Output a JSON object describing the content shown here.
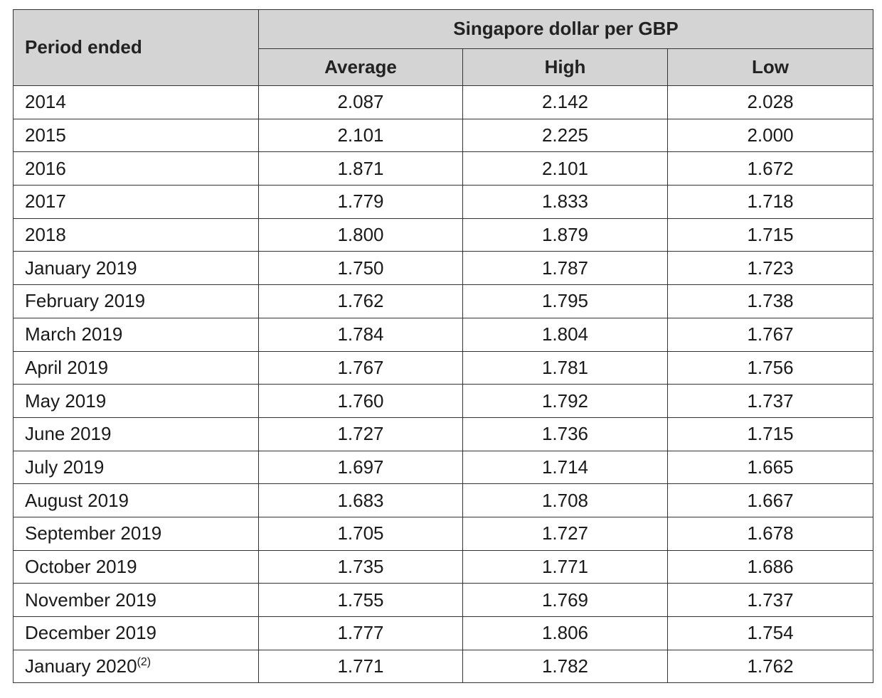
{
  "table": {
    "header": {
      "period_label": "Period ended",
      "group_label": "Singapore dollar per GBP",
      "columns": [
        "Average",
        "High",
        "Low"
      ]
    },
    "rows": [
      {
        "period": "2014",
        "note": "",
        "average": "2.087",
        "high": "2.142",
        "low": "2.028"
      },
      {
        "period": "2015",
        "note": "",
        "average": "2.101",
        "high": "2.225",
        "low": "2.000"
      },
      {
        "period": "2016",
        "note": "",
        "average": "1.871",
        "high": "2.101",
        "low": "1.672"
      },
      {
        "period": "2017",
        "note": "",
        "average": "1.779",
        "high": "1.833",
        "low": "1.718"
      },
      {
        "period": "2018",
        "note": "",
        "average": "1.800",
        "high": "1.879",
        "low": "1.715"
      },
      {
        "period": "January 2019",
        "note": "",
        "average": "1.750",
        "high": "1.787",
        "low": "1.723"
      },
      {
        "period": "February 2019",
        "note": "",
        "average": "1.762",
        "high": "1.795",
        "low": "1.738"
      },
      {
        "period": "March 2019",
        "note": "",
        "average": "1.784",
        "high": "1.804",
        "low": "1.767"
      },
      {
        "period": "April 2019",
        "note": "",
        "average": "1.767",
        "high": "1.781",
        "low": "1.756"
      },
      {
        "period": "May 2019",
        "note": "",
        "average": "1.760",
        "high": "1.792",
        "low": "1.737"
      },
      {
        "period": "June 2019",
        "note": "",
        "average": "1.727",
        "high": "1.736",
        "low": "1.715"
      },
      {
        "period": "July 2019",
        "note": "",
        "average": "1.697",
        "high": "1.714",
        "low": "1.665"
      },
      {
        "period": "August 2019",
        "note": "",
        "average": "1.683",
        "high": "1.708",
        "low": "1.667"
      },
      {
        "period": "September 2019",
        "note": "",
        "average": "1.705",
        "high": "1.727",
        "low": "1.678"
      },
      {
        "period": "October 2019",
        "note": "",
        "average": "1.735",
        "high": "1.771",
        "low": "1.686"
      },
      {
        "period": "November 2019",
        "note": "",
        "average": "1.755",
        "high": "1.769",
        "low": "1.737"
      },
      {
        "period": "December 2019",
        "note": "",
        "average": "1.777",
        "high": "1.806",
        "low": "1.754"
      },
      {
        "period": "January 2020",
        "note": "(2)",
        "average": "1.771",
        "high": "1.782",
        "low": "1.762"
      }
    ]
  }
}
